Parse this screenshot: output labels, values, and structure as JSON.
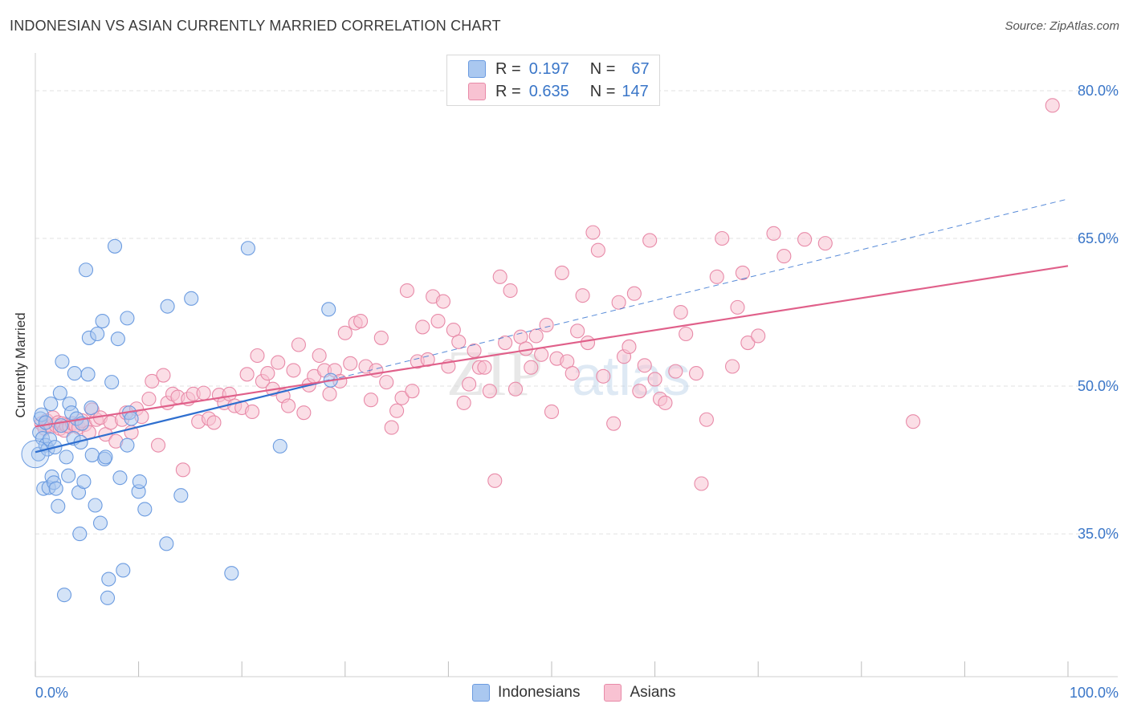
{
  "header": {
    "title": "INDONESIAN VS ASIAN CURRENTLY MARRIED CORRELATION CHART",
    "source": "Source: ZipAtlas.com"
  },
  "legend": {
    "rows": [
      {
        "r_label": "R =",
        "r_value": "0.197",
        "n_label": "N =",
        "n_value": "67",
        "color": "#aac8f0",
        "border": "#6b9be0"
      },
      {
        "r_label": "R =",
        "r_value": "0.635",
        "n_label": "N =",
        "n_value": "147",
        "color": "#f8c2d2",
        "border": "#e88aa8"
      }
    ]
  },
  "bottom_legend": [
    "Indonesians",
    "Asians"
  ],
  "colors": {
    "indonesians_fill": "#aac8f0",
    "indonesians_stroke": "#6b9be0",
    "indonesians_line": "#2f6fcf",
    "asians_fill": "#f8c2d2",
    "asians_stroke": "#e88aa8",
    "asians_line": "#e0608a",
    "axis_label": "#3a76c8",
    "grid": "#e2e2e2"
  },
  "chart_data": {
    "type": "scatter",
    "title": "INDONESIAN VS ASIAN CURRENTLY MARRIED CORRELATION CHART",
    "xlabel": "",
    "ylabel": "Currently Married",
    "xlim": [
      0,
      100
    ],
    "ylim": [
      20.5,
      83.5
    ],
    "x_tick_labels": [
      "0.0%",
      "100.0%"
    ],
    "y_ticks": [
      35,
      50,
      65,
      80
    ],
    "y_tick_labels": [
      "35.0%",
      "50.0%",
      "65.0%",
      "80.0%"
    ],
    "grid": true,
    "legend_position": "top-center",
    "watermark": "ZIPatlas",
    "series": [
      {
        "name": "Indonesians",
        "R": 0.197,
        "N": 67,
        "trend": {
          "x0": 0,
          "y0": 43.3,
          "x1": 28.5,
          "y1": 50.6,
          "dashed_to_x": 100,
          "dashed_to_y": 69.0
        },
        "points": [
          [
            0.3,
            43.1
          ],
          [
            0.4,
            45.3
          ],
          [
            0.5,
            46.7
          ],
          [
            0.6,
            47.1
          ],
          [
            0.7,
            44.7
          ],
          [
            0.8,
            39.6
          ],
          [
            1.0,
            44.0
          ],
          [
            1.2,
            43.6
          ],
          [
            1.3,
            39.7
          ],
          [
            1.4,
            44.6
          ],
          [
            1.5,
            48.2
          ],
          [
            1.6,
            40.8
          ],
          [
            1.8,
            40.2
          ],
          [
            1.9,
            43.8
          ],
          [
            2.0,
            39.6
          ],
          [
            2.2,
            37.8
          ],
          [
            2.4,
            49.3
          ],
          [
            2.6,
            52.5
          ],
          [
            2.8,
            28.8
          ],
          [
            3.0,
            42.8
          ],
          [
            3.2,
            40.9
          ],
          [
            3.3,
            48.2
          ],
          [
            3.5,
            47.3
          ],
          [
            3.7,
            44.7
          ],
          [
            3.8,
            51.3
          ],
          [
            4.0,
            46.7
          ],
          [
            4.2,
            39.2
          ],
          [
            4.3,
            35.0
          ],
          [
            4.4,
            44.3
          ],
          [
            4.5,
            46.2
          ],
          [
            4.7,
            40.3
          ],
          [
            4.9,
            61.8
          ],
          [
            5.1,
            51.2
          ],
          [
            5.2,
            54.9
          ],
          [
            5.4,
            47.8
          ],
          [
            5.5,
            43.0
          ],
          [
            5.8,
            37.9
          ],
          [
            6.0,
            55.3
          ],
          [
            6.3,
            36.1
          ],
          [
            6.5,
            56.6
          ],
          [
            6.7,
            42.6
          ],
          [
            6.8,
            42.8
          ],
          [
            7.0,
            28.5
          ],
          [
            7.1,
            30.4
          ],
          [
            7.4,
            50.4
          ],
          [
            7.7,
            64.2
          ],
          [
            8.0,
            54.8
          ],
          [
            8.2,
            40.7
          ],
          [
            8.5,
            31.3
          ],
          [
            8.9,
            56.9
          ],
          [
            8.9,
            44.0
          ],
          [
            9.1,
            47.3
          ],
          [
            9.3,
            46.7
          ],
          [
            10.0,
            39.3
          ],
          [
            10.1,
            40.3
          ],
          [
            10.6,
            37.5
          ],
          [
            12.7,
            34.0
          ],
          [
            12.8,
            58.1
          ],
          [
            14.1,
            38.9
          ],
          [
            15.1,
            58.9
          ],
          [
            19.0,
            31.0
          ],
          [
            20.6,
            64.0
          ],
          [
            23.7,
            43.9
          ],
          [
            28.4,
            57.8
          ],
          [
            28.6,
            50.6
          ],
          [
            1.0,
            46.3
          ],
          [
            2.5,
            46.0
          ]
        ]
      },
      {
        "name": "Asians",
        "R": 0.635,
        "N": 147,
        "trend": {
          "x0": 0,
          "y0": 45.9,
          "x1": 100,
          "y1": 62.2
        },
        "points": [
          [
            0.6,
            46.2
          ],
          [
            0.9,
            45.7
          ],
          [
            1.1,
            46.5
          ],
          [
            1.3,
            46.1
          ],
          [
            1.5,
            45.9
          ],
          [
            1.7,
            46.8
          ],
          [
            2.0,
            46.0
          ],
          [
            2.2,
            46.3
          ],
          [
            2.4,
            45.7
          ],
          [
            2.6,
            46.2
          ],
          [
            2.8,
            45.5
          ],
          [
            3.0,
            46.0
          ],
          [
            3.3,
            45.9
          ],
          [
            3.6,
            46.2
          ],
          [
            3.9,
            46.0
          ],
          [
            4.2,
            45.8
          ],
          [
            4.5,
            46.5
          ],
          [
            4.8,
            46.1
          ],
          [
            5.2,
            45.3
          ],
          [
            5.5,
            47.6
          ],
          [
            5.9,
            46.6
          ],
          [
            6.3,
            46.8
          ],
          [
            6.8,
            45.1
          ],
          [
            7.3,
            46.3
          ],
          [
            7.8,
            44.4
          ],
          [
            8.4,
            46.6
          ],
          [
            8.8,
            47.3
          ],
          [
            9.3,
            45.3
          ],
          [
            9.8,
            47.7
          ],
          [
            10.3,
            46.9
          ],
          [
            11.0,
            48.7
          ],
          [
            11.3,
            50.5
          ],
          [
            11.9,
            44.0
          ],
          [
            12.4,
            51.1
          ],
          [
            12.8,
            48.3
          ],
          [
            13.3,
            49.2
          ],
          [
            13.8,
            48.9
          ],
          [
            14.3,
            41.5
          ],
          [
            14.8,
            48.7
          ],
          [
            15.3,
            49.2
          ],
          [
            15.8,
            46.4
          ],
          [
            16.3,
            49.3
          ],
          [
            16.8,
            46.7
          ],
          [
            17.3,
            46.3
          ],
          [
            17.8,
            49.1
          ],
          [
            18.3,
            48.3
          ],
          [
            18.8,
            49.2
          ],
          [
            19.3,
            48.0
          ],
          [
            20.0,
            47.8
          ],
          [
            20.5,
            51.2
          ],
          [
            21.0,
            47.4
          ],
          [
            21.5,
            53.1
          ],
          [
            22.0,
            50.5
          ],
          [
            22.5,
            51.3
          ],
          [
            23.0,
            49.7
          ],
          [
            23.5,
            52.4
          ],
          [
            24.0,
            49.0
          ],
          [
            24.5,
            48.0
          ],
          [
            25.0,
            51.6
          ],
          [
            25.5,
            54.2
          ],
          [
            26.0,
            47.3
          ],
          [
            26.5,
            50.1
          ],
          [
            27.0,
            51.0
          ],
          [
            27.5,
            53.1
          ],
          [
            28.0,
            51.6
          ],
          [
            28.5,
            49.2
          ],
          [
            29.0,
            51.6
          ],
          [
            29.5,
            50.5
          ],
          [
            30.0,
            55.4
          ],
          [
            30.5,
            52.3
          ],
          [
            31.0,
            56.4
          ],
          [
            31.5,
            56.6
          ],
          [
            32.0,
            52.0
          ],
          [
            32.5,
            48.6
          ],
          [
            33.0,
            51.6
          ],
          [
            33.5,
            54.9
          ],
          [
            34.0,
            50.4
          ],
          [
            34.5,
            45.8
          ],
          [
            35.0,
            47.5
          ],
          [
            35.5,
            48.8
          ],
          [
            36.0,
            59.7
          ],
          [
            36.5,
            49.5
          ],
          [
            37.0,
            52.5
          ],
          [
            37.5,
            56.0
          ],
          [
            38.0,
            52.7
          ],
          [
            38.5,
            59.1
          ],
          [
            39.0,
            56.6
          ],
          [
            39.5,
            58.6
          ],
          [
            40.0,
            52.0
          ],
          [
            40.5,
            55.7
          ],
          [
            41.0,
            54.5
          ],
          [
            41.5,
            48.3
          ],
          [
            42.0,
            50.2
          ],
          [
            42.5,
            53.6
          ],
          [
            43.0,
            51.9
          ],
          [
            43.5,
            51.9
          ],
          [
            44.0,
            49.5
          ],
          [
            44.5,
            40.4
          ],
          [
            45.0,
            61.1
          ],
          [
            45.5,
            54.4
          ],
          [
            46.0,
            59.7
          ],
          [
            46.5,
            49.7
          ],
          [
            47.0,
            55.0
          ],
          [
            47.5,
            53.8
          ],
          [
            48.0,
            51.9
          ],
          [
            48.5,
            55.1
          ],
          [
            49.0,
            53.2
          ],
          [
            49.5,
            56.2
          ],
          [
            50.0,
            47.4
          ],
          [
            50.5,
            52.8
          ],
          [
            51.0,
            61.5
          ],
          [
            51.5,
            52.5
          ],
          [
            52.0,
            51.3
          ],
          [
            52.5,
            55.6
          ],
          [
            53.0,
            59.2
          ],
          [
            53.5,
            54.4
          ],
          [
            54.0,
            65.6
          ],
          [
            54.5,
            63.8
          ],
          [
            55.0,
            51.0
          ],
          [
            56.0,
            46.2
          ],
          [
            56.5,
            58.5
          ],
          [
            57.0,
            53.0
          ],
          [
            57.5,
            54.0
          ],
          [
            58.0,
            59.4
          ],
          [
            58.5,
            49.5
          ],
          [
            59.0,
            52.1
          ],
          [
            59.5,
            64.8
          ],
          [
            60.0,
            50.7
          ],
          [
            60.5,
            48.7
          ],
          [
            61.0,
            48.3
          ],
          [
            62.0,
            51.5
          ],
          [
            62.5,
            57.5
          ],
          [
            63.0,
            55.3
          ],
          [
            64.0,
            51.3
          ],
          [
            64.5,
            40.1
          ],
          [
            65.0,
            46.6
          ],
          [
            66.0,
            61.1
          ],
          [
            66.5,
            65.0
          ],
          [
            67.5,
            52.0
          ],
          [
            68.0,
            58.0
          ],
          [
            68.5,
            61.5
          ],
          [
            69.0,
            54.4
          ],
          [
            70.0,
            55.1
          ],
          [
            71.5,
            65.5
          ],
          [
            72.5,
            63.2
          ],
          [
            74.5,
            64.9
          ],
          [
            76.5,
            64.5
          ],
          [
            85.0,
            46.4
          ],
          [
            98.5,
            78.5
          ]
        ]
      }
    ]
  }
}
